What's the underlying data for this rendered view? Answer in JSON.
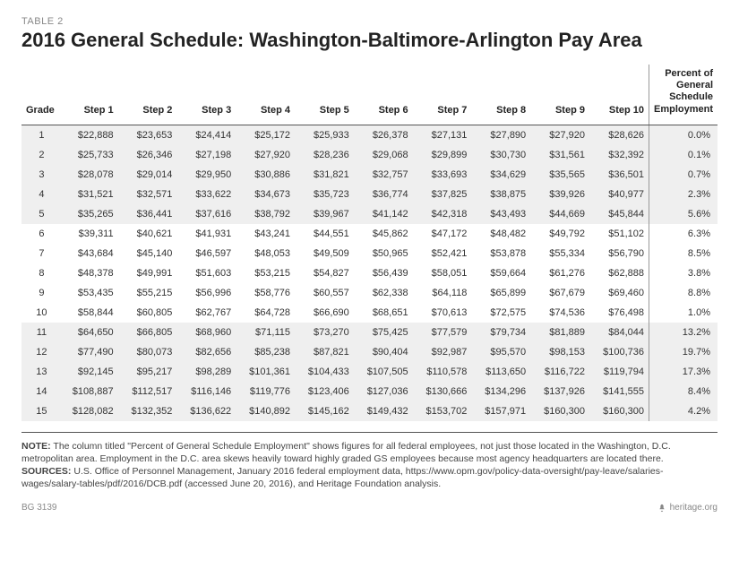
{
  "table_label": "TABLE 2",
  "title": "2016 General Schedule: Washington-Baltimore-Arlington Pay Area",
  "columns": [
    "Grade",
    "Step 1",
    "Step 2",
    "Step 3",
    "Step 4",
    "Step 5",
    "Step 6",
    "Step 7",
    "Step 8",
    "Step 9",
    "Step 10"
  ],
  "pct_header": "Percent of General Schedule Employment",
  "rows": [
    {
      "grade": "1",
      "steps": [
        "$22,888",
        "$23,653",
        "$24,414",
        "$25,172",
        "$25,933",
        "$26,378",
        "$27,131",
        "$27,890",
        "$27,920",
        "$28,626"
      ],
      "pct": "0.0%"
    },
    {
      "grade": "2",
      "steps": [
        "$25,733",
        "$26,346",
        "$27,198",
        "$27,920",
        "$28,236",
        "$29,068",
        "$29,899",
        "$30,730",
        "$31,561",
        "$32,392"
      ],
      "pct": "0.1%"
    },
    {
      "grade": "3",
      "steps": [
        "$28,078",
        "$29,014",
        "$29,950",
        "$30,886",
        "$31,821",
        "$32,757",
        "$33,693",
        "$34,629",
        "$35,565",
        "$36,501"
      ],
      "pct": "0.7%"
    },
    {
      "grade": "4",
      "steps": [
        "$31,521",
        "$32,571",
        "$33,622",
        "$34,673",
        "$35,723",
        "$36,774",
        "$37,825",
        "$38,875",
        "$39,926",
        "$40,977"
      ],
      "pct": "2.3%"
    },
    {
      "grade": "5",
      "steps": [
        "$35,265",
        "$36,441",
        "$37,616",
        "$38,792",
        "$39,967",
        "$41,142",
        "$42,318",
        "$43,493",
        "$44,669",
        "$45,844"
      ],
      "pct": "5.6%"
    },
    {
      "grade": "6",
      "steps": [
        "$39,311",
        "$40,621",
        "$41,931",
        "$43,241",
        "$44,551",
        "$45,862",
        "$47,172",
        "$48,482",
        "$49,792",
        "$51,102"
      ],
      "pct": "6.3%"
    },
    {
      "grade": "7",
      "steps": [
        "$43,684",
        "$45,140",
        "$46,597",
        "$48,053",
        "$49,509",
        "$50,965",
        "$52,421",
        "$53,878",
        "$55,334",
        "$56,790"
      ],
      "pct": "8.5%"
    },
    {
      "grade": "8",
      "steps": [
        "$48,378",
        "$49,991",
        "$51,603",
        "$53,215",
        "$54,827",
        "$56,439",
        "$58,051",
        "$59,664",
        "$61,276",
        "$62,888"
      ],
      "pct": "3.8%"
    },
    {
      "grade": "9",
      "steps": [
        "$53,435",
        "$55,215",
        "$56,996",
        "$58,776",
        "$60,557",
        "$62,338",
        "$64,118",
        "$65,899",
        "$67,679",
        "$69,460"
      ],
      "pct": "8.8%"
    },
    {
      "grade": "10",
      "steps": [
        "$58,844",
        "$60,805",
        "$62,767",
        "$64,728",
        "$66,690",
        "$68,651",
        "$70,613",
        "$72,575",
        "$74,536",
        "$76,498"
      ],
      "pct": "1.0%"
    },
    {
      "grade": "11",
      "steps": [
        "$64,650",
        "$66,805",
        "$68,960",
        "$71,115",
        "$73,270",
        "$75,425",
        "$77,579",
        "$79,734",
        "$81,889",
        "$84,044"
      ],
      "pct": "13.2%"
    },
    {
      "grade": "12",
      "steps": [
        "$77,490",
        "$80,073",
        "$82,656",
        "$85,238",
        "$87,821",
        "$90,404",
        "$92,987",
        "$95,570",
        "$98,153",
        "$100,736"
      ],
      "pct": "19.7%"
    },
    {
      "grade": "13",
      "steps": [
        "$92,145",
        "$95,217",
        "$98,289",
        "$101,361",
        "$104,433",
        "$107,505",
        "$110,578",
        "$113,650",
        "$116,722",
        "$119,794"
      ],
      "pct": "17.3%"
    },
    {
      "grade": "14",
      "steps": [
        "$108,887",
        "$112,517",
        "$116,146",
        "$119,776",
        "$123,406",
        "$127,036",
        "$130,666",
        "$134,296",
        "$137,926",
        "$141,555"
      ],
      "pct": "8.4%"
    },
    {
      "grade": "15",
      "steps": [
        "$128,082",
        "$132,352",
        "$136,622",
        "$140,892",
        "$145,162",
        "$149,432",
        "$153,702",
        "$157,971",
        "$160,300",
        "$160,300"
      ],
      "pct": "4.2%"
    }
  ],
  "note_label": "NOTE:",
  "note_text": " The column titled \"Percent of General Schedule Employment\" shows figures for all federal employees, not just those located in the Washington, D.C. metropolitan area. Employment in the D.C. area skews heavily toward highly graded GS employees because most agency headquarters are located there.",
  "sources_label": "SOURCES:",
  "sources_text": " U.S. Office of Personnel Management, January 2016 federal employment data, https://www.opm.gov/policy-data-oversight/pay-leave/salaries-wages/salary-tables/pdf/2016/DCB.pdf (accessed June 20, 2016), and Heritage Foundation analysis.",
  "footer_left": "BG 3139",
  "footer_right": "heritage.org",
  "shaded_rows": [
    0,
    1,
    2,
    3,
    4,
    10,
    11,
    12,
    13,
    14
  ]
}
